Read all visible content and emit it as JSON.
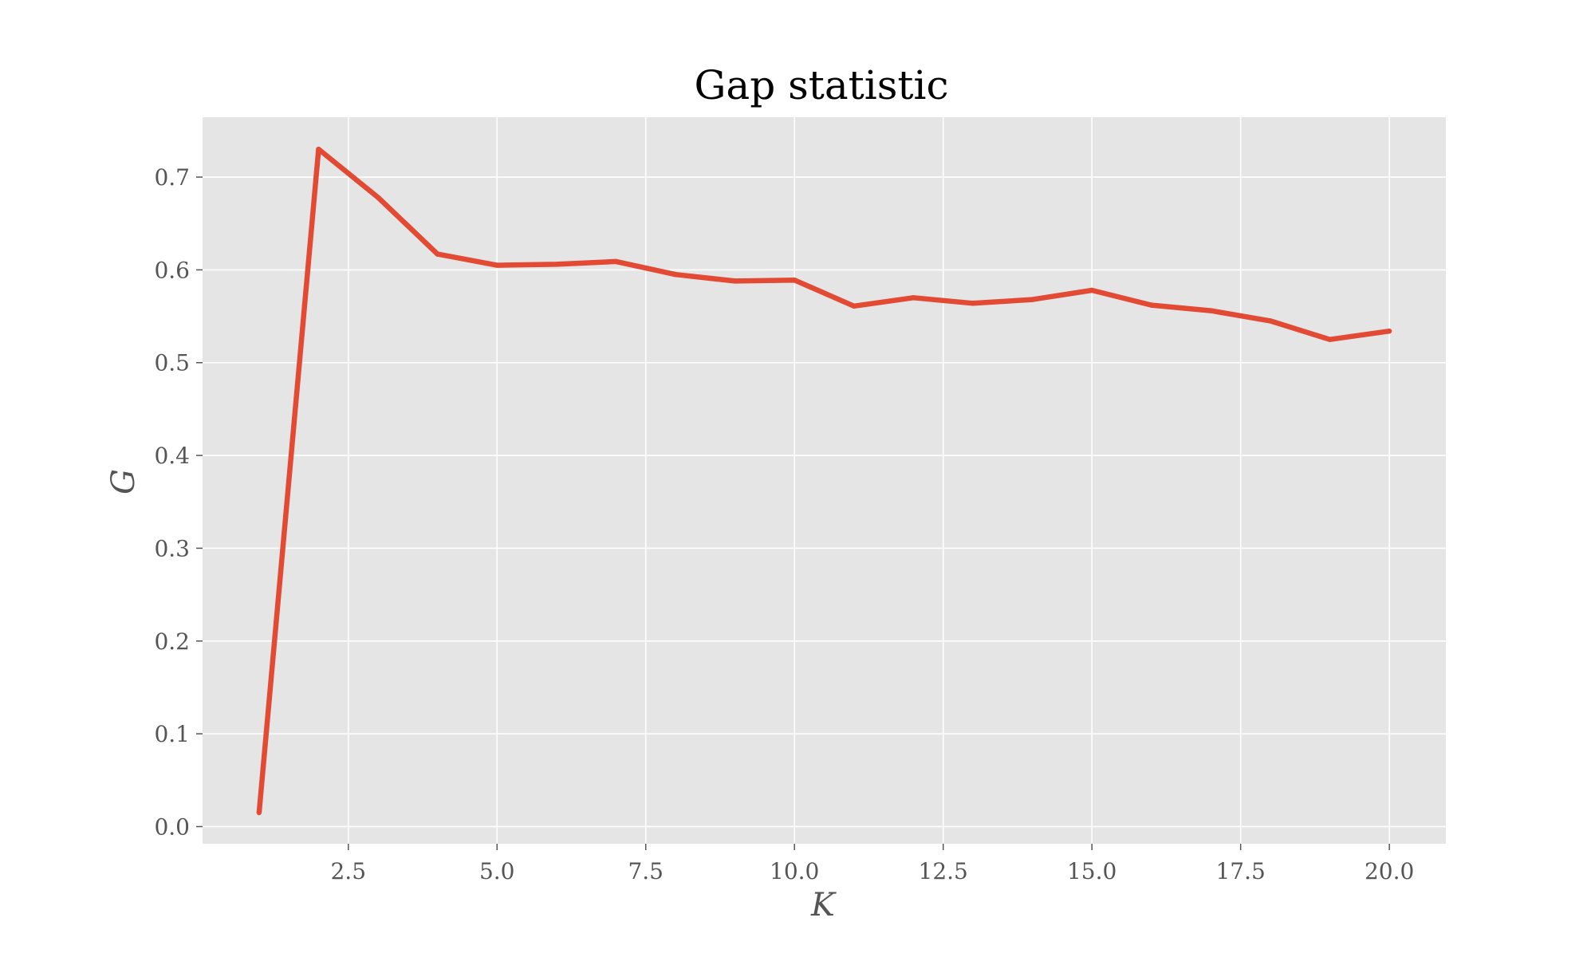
{
  "chart_data": {
    "type": "line",
    "title": "Gap statistic",
    "xlabel": "K",
    "ylabel": "G",
    "xlim": [
      0.05,
      20.95
    ],
    "ylim": [
      -0.0185,
      0.7645
    ],
    "x_ticks": [
      "2.5",
      "5.0",
      "7.5",
      "10.0",
      "12.5",
      "15.0",
      "17.5",
      "20.0"
    ],
    "y_ticks": [
      "0.0",
      "0.1",
      "0.2",
      "0.3",
      "0.4",
      "0.5",
      "0.6",
      "0.7"
    ],
    "grid": true,
    "colors": {
      "background": "#e5e5e5",
      "grid": "#ffffff",
      "line": "#e24a33"
    },
    "series": [
      {
        "x": [
          1,
          2,
          3,
          4,
          5,
          6,
          7,
          8,
          9,
          10,
          11,
          12,
          13,
          14,
          15,
          16,
          17,
          18,
          19,
          20
        ],
        "values": [
          0.015,
          0.73,
          0.678,
          0.617,
          0.605,
          0.606,
          0.609,
          0.595,
          0.588,
          0.589,
          0.561,
          0.57,
          0.564,
          0.568,
          0.578,
          0.562,
          0.556,
          0.545,
          0.525,
          0.534
        ]
      }
    ]
  }
}
